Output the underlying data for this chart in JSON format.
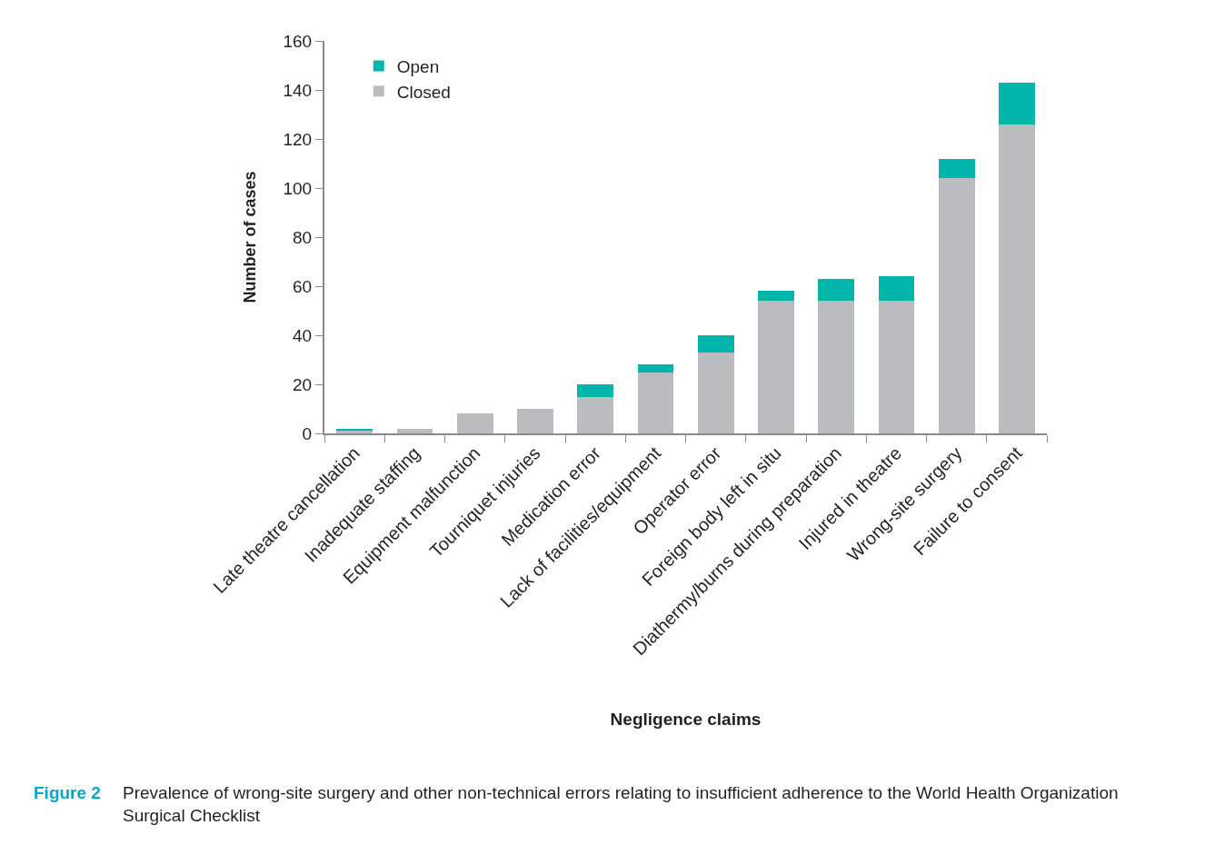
{
  "chart_data": {
    "type": "bar",
    "stacked": true,
    "categories": [
      "Late theatre cancellation",
      "Inadequate staffing",
      "Equipment malfunction",
      "Tourniquet injuries",
      "Medication error",
      "Lack of facilities/equipment",
      "Operator error",
      "Foreign body left in situ",
      "Diathermy/burns during preparation",
      "Injured in theatre",
      "Wrong-site surgery",
      "Failure to consent"
    ],
    "series": [
      {
        "name": "Closed",
        "color": "#bbbcc0",
        "values": [
          1,
          2,
          8,
          10,
          15,
          25,
          33,
          54,
          54,
          54,
          104,
          126
        ]
      },
      {
        "name": "Open",
        "color": "#00b5aa",
        "values": [
          1,
          0,
          0,
          0,
          5,
          3,
          7,
          4,
          9,
          10,
          8,
          17
        ]
      }
    ],
    "ylabel": "Number of cases",
    "xlabel": "Negligence claims",
    "ylim": [
      0,
      160
    ],
    "yticks": [
      0,
      20,
      40,
      60,
      80,
      100,
      120,
      140,
      160
    ],
    "legend": "top left",
    "annotations": [
      "Figure 2",
      "Prevalence of wrong-site surgery and other non-technical errors relating to insufficient adherence to the World Health Organization Surgical Checklist"
    ]
  }
}
